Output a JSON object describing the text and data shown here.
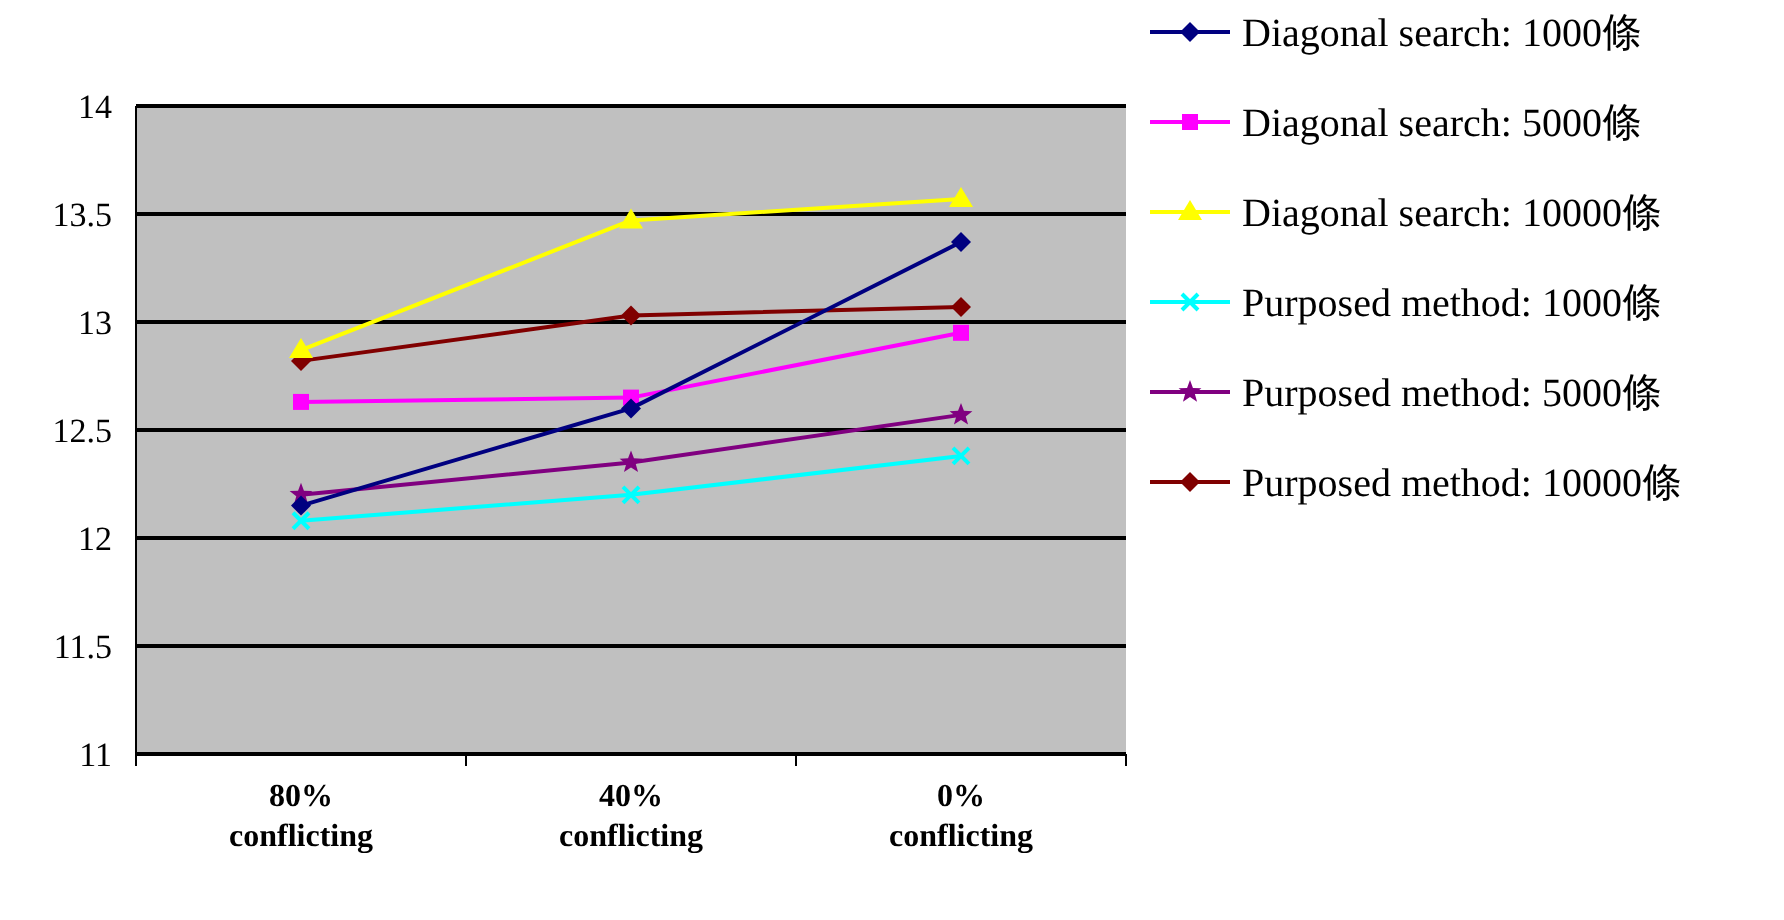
{
  "chart_data": {
    "type": "line",
    "categories": [
      "80%\nconflicting",
      "40%\nconflicting",
      "0%\nconflicting"
    ],
    "ylim": [
      11,
      14
    ],
    "yticks": [
      11,
      11.5,
      12,
      12.5,
      13,
      13.5,
      14
    ],
    "grid": "y",
    "legend": "top right",
    "series": [
      {
        "name": "Diagonal search: 1000條",
        "color": "#000080",
        "marker": "diamond",
        "values": [
          12.15,
          12.6,
          13.37
        ]
      },
      {
        "name": "Diagonal search: 5000條",
        "color": "#ff00ff",
        "marker": "square",
        "values": [
          12.63,
          12.65,
          12.95
        ]
      },
      {
        "name": "Diagonal search: 10000條",
        "color": "#ffff00",
        "marker": "triangle",
        "values": [
          12.87,
          13.47,
          13.57
        ]
      },
      {
        "name": "Purposed method: 1000條",
        "color": "#00ffff",
        "marker": "cross",
        "values": [
          12.08,
          12.2,
          12.38
        ]
      },
      {
        "name": "Purposed method: 5000條",
        "color": "#800080",
        "marker": "star",
        "values": [
          12.2,
          12.35,
          12.57
        ]
      },
      {
        "name": "Purposed method: 10000條",
        "color": "#800000",
        "marker": "diamond",
        "values": [
          12.82,
          13.03,
          13.07
        ]
      }
    ]
  }
}
